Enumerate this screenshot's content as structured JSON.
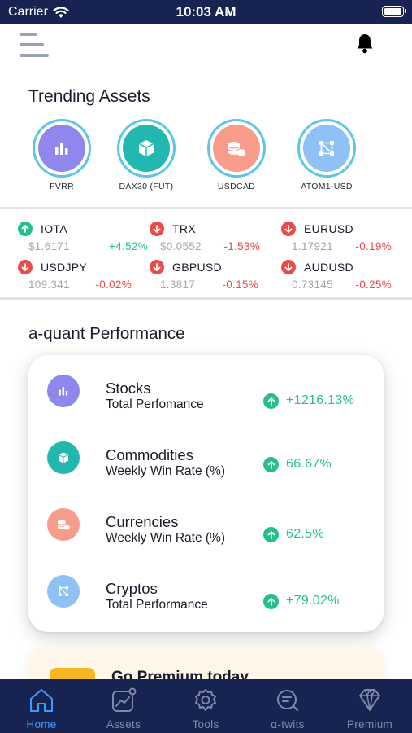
{
  "status_bar": {
    "carrier": "Carrier",
    "time": "10:03 AM"
  },
  "header": {
    "menu_icon": "hamburger-menu-icon",
    "bell_icon": "bell-icon"
  },
  "trending": {
    "title": "Trending Assets",
    "items": [
      {
        "label": "FVRR",
        "icon": "bar-chart-icon",
        "color": "#8f86ee"
      },
      {
        "label": "DAX30 (FUT)",
        "icon": "box-icon",
        "color": "#22b8b0"
      },
      {
        "label": "USDCAD",
        "icon": "coins-icon",
        "color": "#f79b8b"
      },
      {
        "label": "ATOM1-USD",
        "icon": "crypto-network-icon",
        "color": "#8fc1f5"
      }
    ]
  },
  "tickers": [
    {
      "name": "IOTA",
      "price": "$1.6171",
      "change": "+4.52%",
      "direction": "up"
    },
    {
      "name": "TRX",
      "price": "$0.0552",
      "change": "-1.53%",
      "direction": "down"
    },
    {
      "name": "EURUSD",
      "price": "1.17921",
      "change": "-0.19%",
      "direction": "down"
    },
    {
      "name": "USDJPY",
      "price": "109.341",
      "change": "-0.02%",
      "direction": "down"
    },
    {
      "name": "GBPUSD",
      "price": "1.3817",
      "change": "-0.15%",
      "direction": "down"
    },
    {
      "name": "AUDUSD",
      "price": "0.73145",
      "change": "-0.25%",
      "direction": "down"
    }
  ],
  "performance": {
    "title": "a-quant Performance",
    "rows": [
      {
        "name": "Stocks",
        "subtitle": "Total Perfomance",
        "value": "+1216.13%",
        "icon": "bar-chart-icon",
        "color": "#8f86ee"
      },
      {
        "name": "Commodities",
        "subtitle": "Weekly Win Rate (%)",
        "value": "66.67%",
        "icon": "box-icon",
        "color": "#22b8b0"
      },
      {
        "name": "Currencies",
        "subtitle": "Weekly Win Rate (%)",
        "value": "62.5%",
        "icon": "coins-icon",
        "color": "#f79b8b"
      },
      {
        "name": "Cryptos",
        "subtitle": "Total Performance",
        "value": "+79.02%",
        "icon": "crypto-network-icon",
        "color": "#8fc1f5"
      }
    ]
  },
  "premium": {
    "title": "Go Premium today"
  },
  "tabs": [
    {
      "label": "Home",
      "icon": "home-icon",
      "active": true
    },
    {
      "label": "Assets",
      "icon": "chart-icon",
      "active": false
    },
    {
      "label": "Tools",
      "icon": "gear-icon",
      "active": false
    },
    {
      "label": "α-twits",
      "icon": "chat-search-icon",
      "active": false
    },
    {
      "label": "Premium",
      "icon": "diamond-icon",
      "active": false
    }
  ],
  "colors": {
    "positive": "#25c08a",
    "negative": "#ec4b4b",
    "nav_bg": "#172452",
    "tab_active": "#3b9bff"
  }
}
